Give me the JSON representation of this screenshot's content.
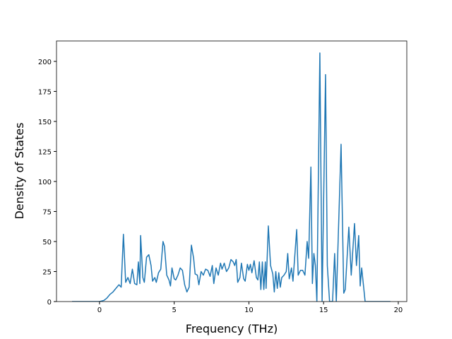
{
  "chart_data": {
    "type": "line",
    "xlabel": "Frequency (THz)",
    "ylabel": "Density of States",
    "color": "#1f77b4",
    "xlim": [
      -2.88,
      20.57
    ],
    "ylim": [
      0,
      217
    ],
    "xticks": [
      0,
      5,
      10,
      15,
      20
    ],
    "yticks": [
      0,
      25,
      50,
      75,
      100,
      125,
      150,
      175,
      200
    ],
    "x": [
      -1.84,
      0,
      0.3,
      0.5,
      0.7,
      0.9,
      1.1,
      1.3,
      1.45,
      1.6,
      1.75,
      1.9,
      2.05,
      2.2,
      2.35,
      2.5,
      2.6,
      2.7,
      2.75,
      2.9,
      3.0,
      3.15,
      3.3,
      3.45,
      3.55,
      3.7,
      3.8,
      3.95,
      4.1,
      4.25,
      4.35,
      4.5,
      4.65,
      4.75,
      4.85,
      5.0,
      5.1,
      5.25,
      5.4,
      5.55,
      5.7,
      5.85,
      6.0,
      6.15,
      6.3,
      6.4,
      6.55,
      6.65,
      6.8,
      6.95,
      7.1,
      7.25,
      7.4,
      7.55,
      7.65,
      7.8,
      7.95,
      8.1,
      8.2,
      8.35,
      8.5,
      8.65,
      8.8,
      8.95,
      9.05,
      9.15,
      9.25,
      9.4,
      9.5,
      9.65,
      9.75,
      9.9,
      10.0,
      10.1,
      10.2,
      10.35,
      10.5,
      10.6,
      10.7,
      10.8,
      10.9,
      11.0,
      11.1,
      11.15,
      11.3,
      11.45,
      11.6,
      11.7,
      11.8,
      11.9,
      12.0,
      12.1,
      12.2,
      12.35,
      12.5,
      12.6,
      12.7,
      12.85,
      12.95,
      13.2,
      13.3,
      13.45,
      13.6,
      13.75,
      13.9,
      14.0,
      14.15,
      14.25,
      14.35,
      14.45,
      14.55,
      14.75,
      14.9,
      15.13,
      15.25,
      15.4,
      15.6,
      15.74,
      15.85,
      16.17,
      16.35,
      16.45,
      16.69,
      16.85,
      17.07,
      17.2,
      17.35,
      17.45,
      17.55,
      17.78,
      19.48
    ],
    "values": [
      0,
      0,
      1,
      3,
      6,
      8,
      11,
      14,
      12,
      56,
      16,
      20,
      15,
      27,
      15,
      14,
      33,
      15,
      55,
      20,
      16,
      37,
      39,
      30,
      17,
      20,
      16,
      24,
      27,
      50,
      46,
      22,
      18,
      13,
      28,
      19,
      18,
      22,
      28,
      26,
      14,
      8,
      12,
      47,
      36,
      23,
      22,
      14,
      25,
      22,
      27,
      26,
      21,
      30,
      15,
      28,
      22,
      32,
      27,
      32,
      25,
      28,
      35,
      33,
      30,
      35,
      16,
      20,
      32,
      19,
      17,
      31,
      26,
      31,
      24,
      34,
      20,
      18,
      33,
      10,
      33,
      10,
      33,
      11,
      63,
      30,
      23,
      8,
      25,
      11,
      24,
      12,
      20,
      22,
      25,
      40,
      19,
      28,
      17,
      60,
      22,
      26,
      26,
      22,
      50,
      36,
      112,
      15,
      40,
      30,
      0,
      207,
      0,
      189,
      30,
      0,
      0,
      40,
      0,
      131,
      7,
      10,
      62,
      22,
      65,
      30,
      55,
      13,
      28,
      0,
      0
    ]
  }
}
